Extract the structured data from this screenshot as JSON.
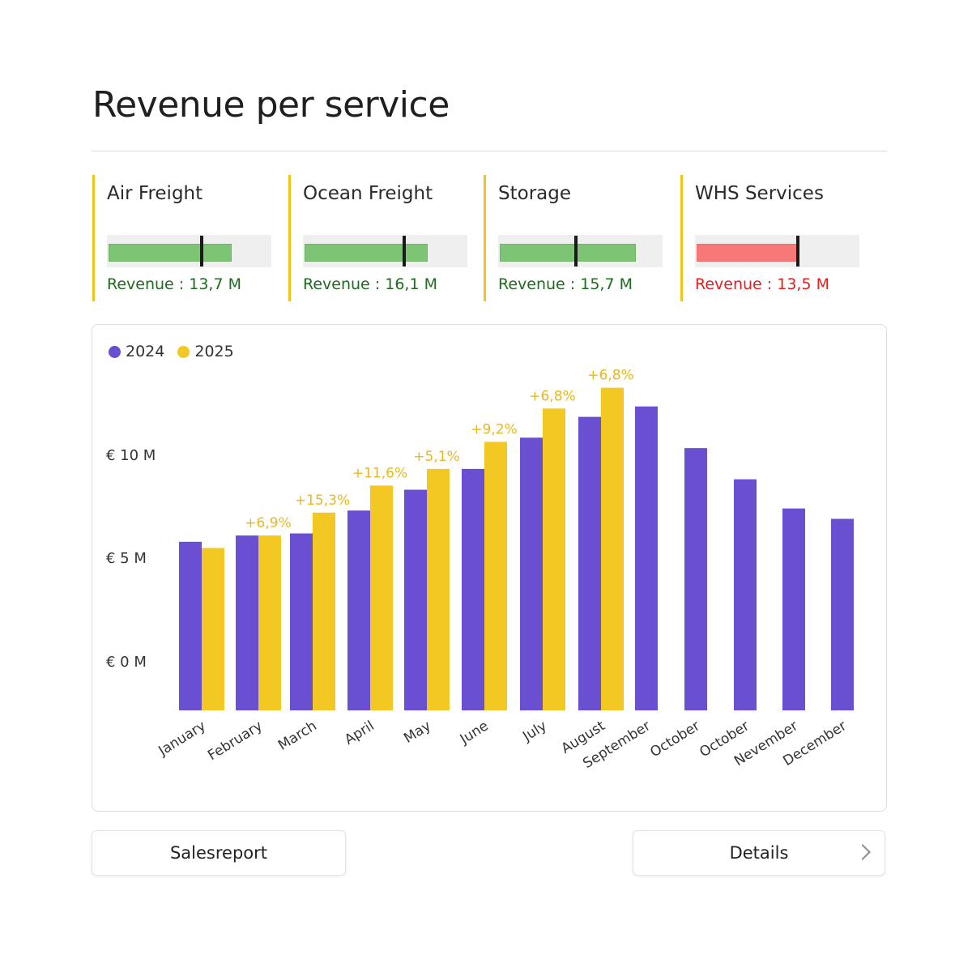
{
  "page": {
    "title": "Revenue per service"
  },
  "kpis": [
    {
      "name": "Air Freight",
      "revenue_label": "Revenue : 13,7 M",
      "progress": 0.74,
      "target": 0.575,
      "status_color": "#7dc474",
      "text_color": "#1e6b1e"
    },
    {
      "name": "Ocean Freight",
      "revenue_label": "Revenue : 16,1 M",
      "progress": 0.74,
      "target": 0.615,
      "status_color": "#7dc474",
      "text_color": "#1e6b1e"
    },
    {
      "name": "Storage",
      "revenue_label": "Revenue : 15,7 M",
      "progress": 0.82,
      "target": 0.475,
      "status_color": "#7dc474",
      "text_color": "#1e6b1e"
    },
    {
      "name": "WHS Services",
      "revenue_label": "Revenue : 13,5 M",
      "progress": 0.61,
      "target": 0.625,
      "status_color": "#f87878",
      "text_color": "#e41e1e"
    }
  ],
  "chart": {
    "legend": [
      {
        "label": "2024",
        "color": "#6a4fd3"
      },
      {
        "label": "2025",
        "color": "#f4c823"
      }
    ]
  },
  "chart_data": {
    "type": "bar",
    "categories": [
      "January",
      "February",
      "March",
      "April",
      "May",
      "June",
      "July",
      "August",
      "September",
      "October",
      "October",
      "Nevember",
      "December"
    ],
    "y_tick_labels": [
      "€ 0 M",
      "€ 5 M",
      "€ 10 M"
    ],
    "series": [
      {
        "name": "2024",
        "color": "#6a4fd3",
        "values": [
          8.1,
          8.4,
          8.5,
          9.6,
          10.6,
          11.6,
          13.1,
          14.1,
          14.6,
          12.6,
          11.1,
          9.7,
          9.2
        ]
      },
      {
        "name": "2025",
        "color": "#f4c823",
        "values": [
          7.8,
          8.4,
          9.5,
          10.8,
          11.6,
          12.9,
          14.5,
          15.5,
          null,
          null,
          null,
          null,
          null
        ]
      }
    ],
    "annotations": [
      "",
      "+6,9%",
      "+15,3%",
      "+11,6%",
      "+5,1%",
      "+9,2%",
      "+6,8%",
      "+6,8%",
      "",
      "",
      "",
      "",
      ""
    ],
    "grid": false,
    "legend_position": "top-left"
  },
  "buttons": {
    "salesreport": "Salesreport",
    "details": "Details"
  }
}
